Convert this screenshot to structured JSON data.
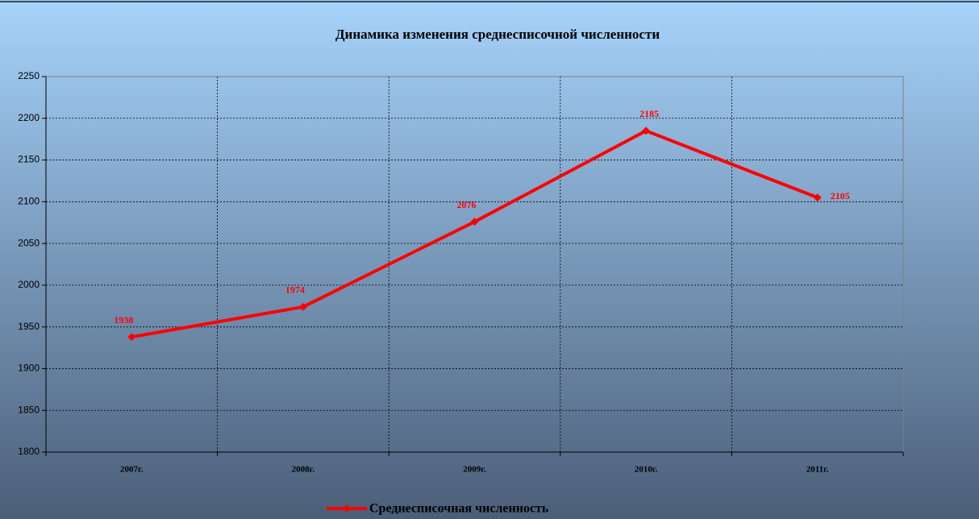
{
  "chart_data": {
    "type": "line",
    "title": "Динамика изменения среднесписочной численности",
    "categories": [
      "2007г.",
      "2008г.",
      "2009г.",
      "2010г.",
      "2011г."
    ],
    "series": [
      {
        "name": "Среднесписочная численность",
        "color": "#ff0000",
        "values": [
          1938,
          1974,
          2076,
          2185,
          2105
        ]
      }
    ],
    "ylim": [
      1800,
      2250
    ],
    "yticks": [
      1800,
      1850,
      1900,
      1950,
      2000,
      2050,
      2100,
      2150,
      2200,
      2250
    ],
    "grid": true,
    "legend": "bottom"
  }
}
